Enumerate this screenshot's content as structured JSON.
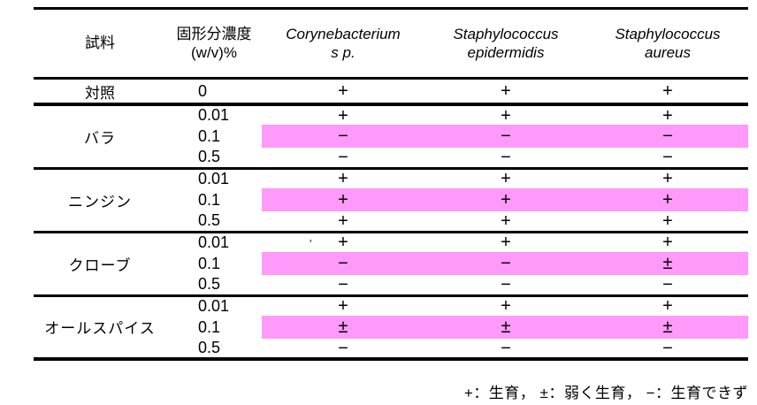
{
  "colors": {
    "highlight": "#FF99FA",
    "text": "#000000",
    "rule": "#000000"
  },
  "header": {
    "sample": "試料",
    "concentration": [
      "固形分濃度",
      "(w/v)%"
    ],
    "species": [
      [
        "Corynebacterium",
        "s p."
      ],
      [
        "Staphylococcus",
        "epidermidis"
      ],
      [
        "Staphylococcus",
        "aureus"
      ]
    ]
  },
  "control_row": {
    "sample": "対照",
    "concentration": "0",
    "values": [
      "+",
      "+",
      "+"
    ]
  },
  "groups": [
    {
      "sample": "バラ",
      "rows": [
        {
          "concentration": "0.01",
          "values": [
            "+",
            "+",
            "+"
          ],
          "highlight": false
        },
        {
          "concentration": "0.1",
          "values": [
            "−",
            "−",
            "−"
          ],
          "highlight": true
        },
        {
          "concentration": "0.5",
          "values": [
            "−",
            "−",
            "−"
          ],
          "highlight": false
        }
      ]
    },
    {
      "sample": "ニンジン",
      "rows": [
        {
          "concentration": "0.01",
          "values": [
            "+",
            "+",
            "+"
          ],
          "highlight": false
        },
        {
          "concentration": "0.1",
          "values": [
            "+",
            "+",
            "+"
          ],
          "highlight": true
        },
        {
          "concentration": "0.5",
          "values": [
            "+",
            "+",
            "+"
          ],
          "highlight": false
        }
      ]
    },
    {
      "sample": "クローブ",
      "rows": [
        {
          "concentration": "0.01",
          "values": [
            "+",
            "+",
            "+"
          ],
          "highlight": false
        },
        {
          "concentration": "0.1",
          "values": [
            "−",
            "−",
            "±"
          ],
          "highlight": true
        },
        {
          "concentration": "0.5",
          "values": [
            "−",
            "−",
            "−"
          ],
          "highlight": false
        }
      ]
    },
    {
      "sample": "オールスパイス",
      "rows": [
        {
          "concentration": "0.01",
          "values": [
            "+",
            "+",
            "+"
          ],
          "highlight": false
        },
        {
          "concentration": "0.1",
          "values": [
            "±",
            "±",
            "±"
          ],
          "highlight": true
        },
        {
          "concentration": "0.5",
          "values": [
            "−",
            "−",
            "−"
          ],
          "highlight": false
        }
      ]
    }
  ],
  "legend": "+：生育， ±：弱く生育， −：生育できず",
  "stray_mark": "'"
}
